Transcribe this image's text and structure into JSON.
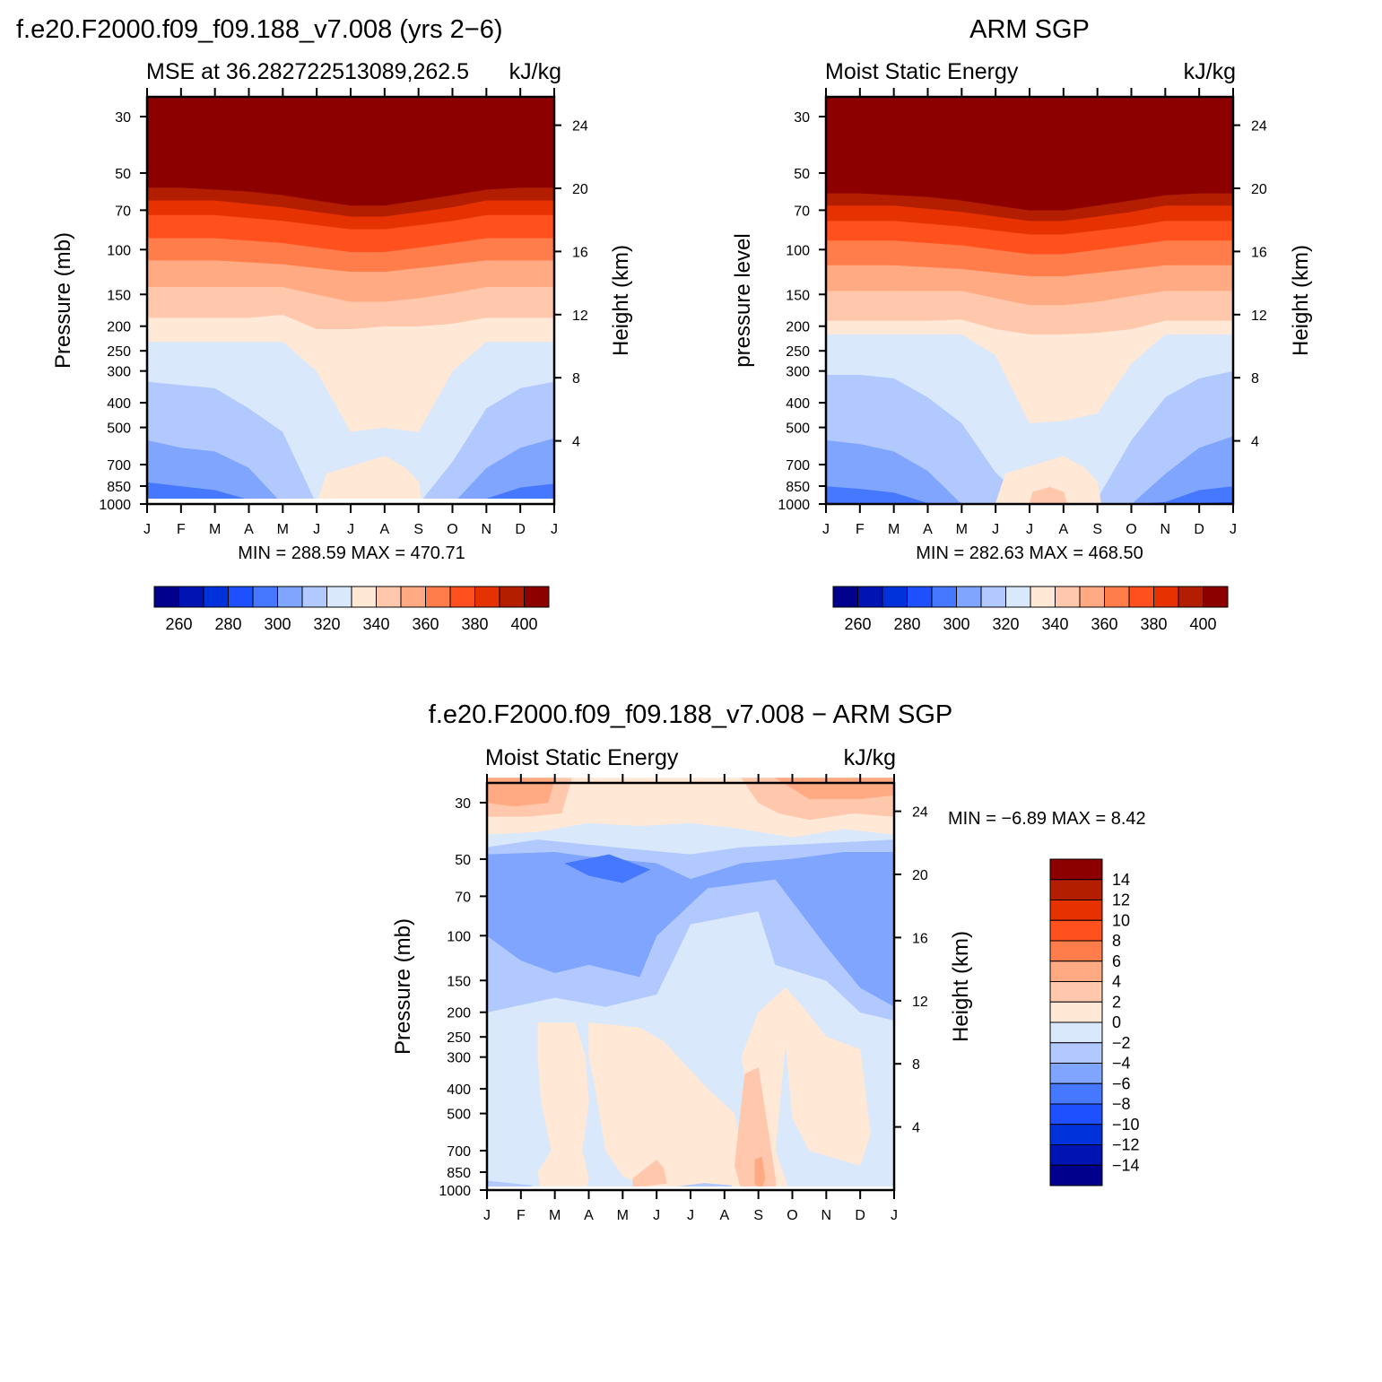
{
  "panels": [
    {
      "title": "f.e20.F2000.f09_f09.188_v7.008 (yrs 2−6)",
      "subtitle_left": "MSE at 36.282722513089,262.5",
      "subtitle_right": "kJ/kg",
      "ylabel": "Pressure (mb)",
      "ylabel_right": "Height (km)",
      "stats": "MIN = 288.59 MAX = 470.71"
    },
    {
      "title": "ARM SGP",
      "subtitle_left": "Moist Static Energy",
      "subtitle_right": "kJ/kg",
      "ylabel": "pressure level",
      "ylabel_right": "Height (km)",
      "stats": "MIN = 282.63 MAX = 468.50"
    },
    {
      "title": "f.e20.F2000.f09_f09.188_v7.008 − ARM SGP",
      "subtitle_left": "Moist Static Energy",
      "subtitle_right": "kJ/kg",
      "ylabel": "Pressure (mb)",
      "ylabel_right": "Height (km)",
      "stats": "MIN =   −6.89  MAX =    8.42"
    }
  ],
  "chart_data": [
    {
      "type": "heatmap",
      "title": "f.e20.F2000.f09_f09.188_v7.008 (yrs 2−6)",
      "subtitle": "MSE at 36.282722513089,262.5",
      "units": "kJ/kg",
      "ylabel": "Pressure (mb)",
      "ylabel_right": "Height (km)",
      "x_ticks": [
        "J",
        "F",
        "M",
        "A",
        "M",
        "J",
        "J",
        "A",
        "S",
        "O",
        "N",
        "D",
        "J"
      ],
      "y_ticks": [
        30,
        50,
        70,
        100,
        150,
        200,
        250,
        300,
        400,
        500,
        700,
        850,
        1000
      ],
      "y_ticks_right": [
        4,
        8,
        12,
        16,
        20,
        24
      ],
      "y_scale": "log",
      "min": 288.59,
      "max": 470.71,
      "levels": [
        260,
        270,
        280,
        290,
        300,
        310,
        320,
        330,
        340,
        350,
        360,
        370,
        380,
        390,
        400
      ],
      "colorbar_labels": [
        "260",
        "280",
        "300",
        "320",
        "340",
        "360",
        "380",
        "400"
      ],
      "colors": [
        "#00008c",
        "#0014b4",
        "#0032dc",
        "#1e50ff",
        "#4678ff",
        "#7fa5ff",
        "#b2c9ff",
        "#d9e8fa",
        "#ffe8d6",
        "#ffc8ad",
        "#ffaa82",
        "#ff7d4b",
        "#ff501e",
        "#e63200",
        "#b41e00",
        "#8c0000"
      ]
    },
    {
      "type": "heatmap",
      "title": "ARM SGP",
      "subtitle": "Moist Static Energy",
      "units": "kJ/kg",
      "ylabel": "pressure level",
      "ylabel_right": "Height (km)",
      "x_ticks": [
        "J",
        "F",
        "M",
        "A",
        "M",
        "J",
        "J",
        "A",
        "S",
        "O",
        "N",
        "D",
        "J"
      ],
      "y_ticks": [
        30,
        50,
        70,
        100,
        150,
        200,
        250,
        300,
        400,
        500,
        700,
        850,
        1000
      ],
      "y_ticks_right": [
        4,
        8,
        12,
        16,
        20,
        24
      ],
      "y_scale": "log",
      "min": 282.63,
      "max": 468.5,
      "levels": [
        260,
        270,
        280,
        290,
        300,
        310,
        320,
        330,
        340,
        350,
        360,
        370,
        380,
        390,
        400
      ],
      "colorbar_labels": [
        "260",
        "280",
        "300",
        "320",
        "340",
        "360",
        "380",
        "400"
      ],
      "colors": [
        "#00008c",
        "#0014b4",
        "#0032dc",
        "#1e50ff",
        "#4678ff",
        "#7fa5ff",
        "#b2c9ff",
        "#d9e8fa",
        "#ffe8d6",
        "#ffc8ad",
        "#ffaa82",
        "#ff7d4b",
        "#ff501e",
        "#e63200",
        "#b41e00",
        "#8c0000"
      ]
    },
    {
      "type": "heatmap",
      "title": "f.e20.F2000.f09_f09.188_v7.008 − ARM SGP",
      "subtitle": "Moist Static Energy",
      "units": "kJ/kg",
      "ylabel": "Pressure (mb)",
      "ylabel_right": "Height (km)",
      "x_ticks": [
        "J",
        "F",
        "M",
        "A",
        "M",
        "J",
        "J",
        "A",
        "S",
        "O",
        "N",
        "D",
        "J"
      ],
      "y_ticks": [
        30,
        50,
        70,
        100,
        150,
        200,
        250,
        300,
        400,
        500,
        700,
        850,
        1000
      ],
      "y_ticks_right": [
        4,
        8,
        12,
        16,
        20,
        24
      ],
      "y_scale": "log",
      "min": -6.89,
      "max": 8.42,
      "levels": [
        -14,
        -12,
        -10,
        -8,
        -6,
        -4,
        -2,
        0,
        2,
        4,
        6,
        8,
        10,
        12,
        14
      ],
      "colorbar_labels": [
        "14",
        "12",
        "10",
        "8",
        "6",
        "4",
        "2",
        "0",
        "−2",
        "−4",
        "−6",
        "−8",
        "−10",
        "−12",
        "−14"
      ],
      "colors": [
        "#00008c",
        "#0014b4",
        "#0032dc",
        "#1e50ff",
        "#4678ff",
        "#7fa5ff",
        "#b2c9ff",
        "#d9e8fa",
        "#ffe8d6",
        "#ffc8ad",
        "#ffaa82",
        "#ff7d4b",
        "#ff501e",
        "#e63200",
        "#b41e00",
        "#8c0000"
      ]
    }
  ]
}
